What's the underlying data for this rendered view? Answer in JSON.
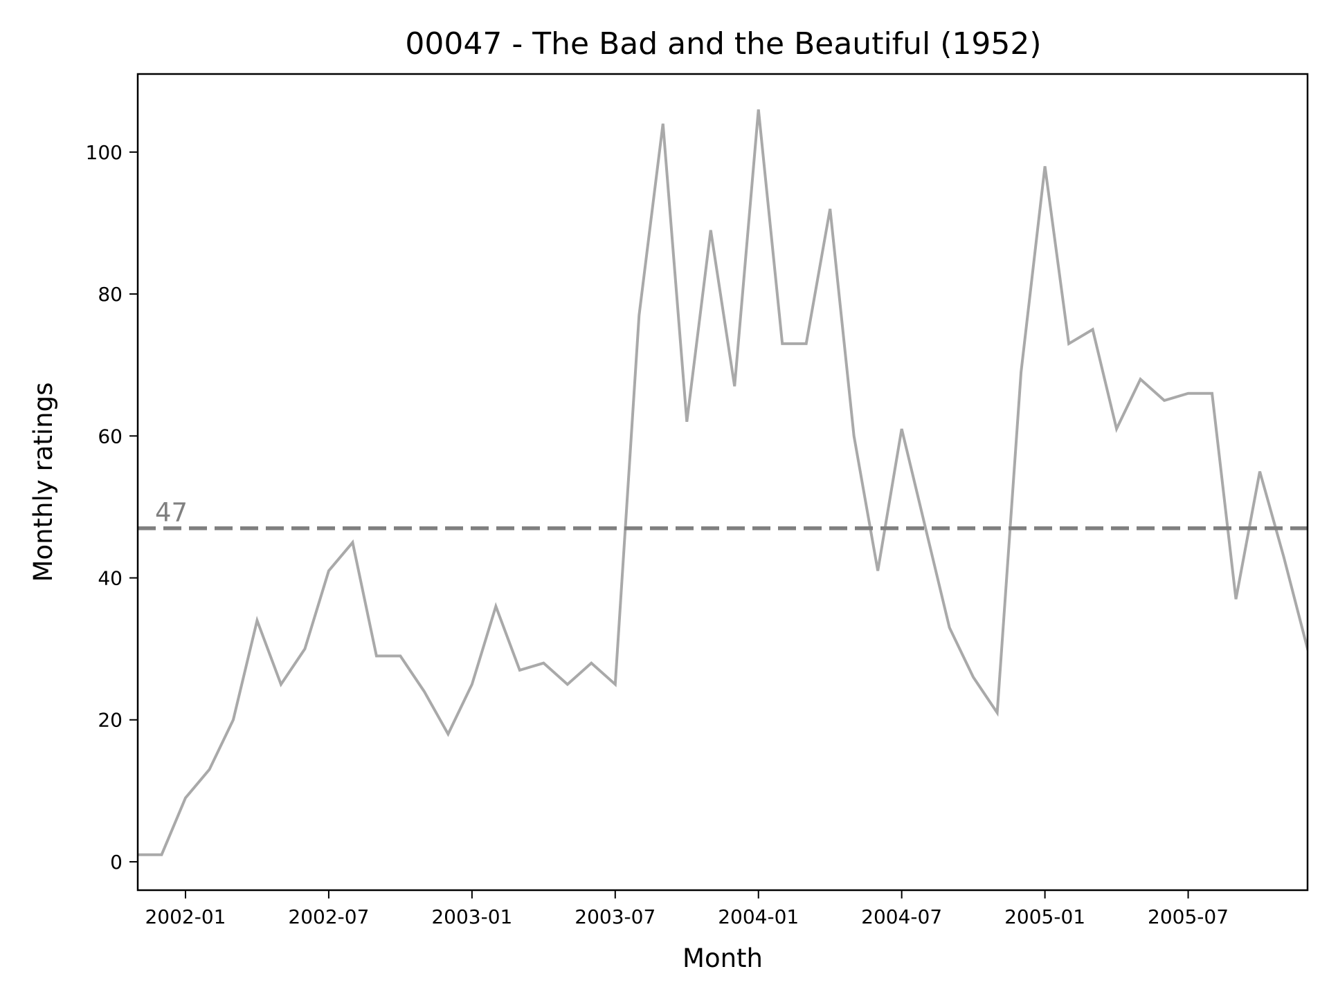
{
  "chart_data": {
    "type": "line",
    "title": "00047 - The Bad and the Beautiful (1952)",
    "xlabel": "Month",
    "ylabel": "Monthly ratings",
    "x_tick_labels": [
      "2002-01",
      "2002-07",
      "2003-01",
      "2003-07",
      "2004-01",
      "2004-07",
      "2005-01",
      "2005-07"
    ],
    "y_ticks": [
      0,
      20,
      40,
      60,
      80,
      100
    ],
    "ylim": [
      -4,
      111
    ],
    "xlim": [
      "2001-11",
      "2005-12"
    ],
    "grid": false,
    "series": [
      {
        "color": "#a9a9a9",
        "x": [
          "2001-11",
          "2001-12",
          "2002-01",
          "2002-02",
          "2002-03",
          "2002-04",
          "2002-05",
          "2002-06",
          "2002-07",
          "2002-08",
          "2002-09",
          "2002-10",
          "2002-11",
          "2002-12",
          "2003-01",
          "2003-02",
          "2003-03",
          "2003-04",
          "2003-05",
          "2003-06",
          "2003-07",
          "2003-08",
          "2003-09",
          "2003-10",
          "2003-11",
          "2003-12",
          "2004-01",
          "2004-02",
          "2004-03",
          "2004-04",
          "2004-05",
          "2004-06",
          "2004-07",
          "2004-08",
          "2004-09",
          "2004-10",
          "2004-11",
          "2004-12",
          "2005-01",
          "2005-02",
          "2005-03",
          "2005-04",
          "2005-05",
          "2005-06",
          "2005-07",
          "2005-08",
          "2005-09",
          "2005-10",
          "2005-11",
          "2005-12"
        ],
        "values": [
          1,
          1,
          9,
          13,
          20,
          34,
          25,
          30,
          41,
          45,
          29,
          29,
          24,
          18,
          25,
          36,
          27,
          28,
          25,
          28,
          25,
          77,
          104,
          62,
          89,
          67,
          106,
          73,
          73,
          92,
          60,
          41,
          61,
          47,
          33,
          26,
          21,
          69,
          98,
          73,
          75,
          61,
          68,
          65,
          66,
          66,
          37,
          55,
          43,
          30
        ]
      }
    ],
    "mean_line": {
      "value": 47,
      "label": "47",
      "color": "#808080",
      "style": "dashed"
    }
  }
}
